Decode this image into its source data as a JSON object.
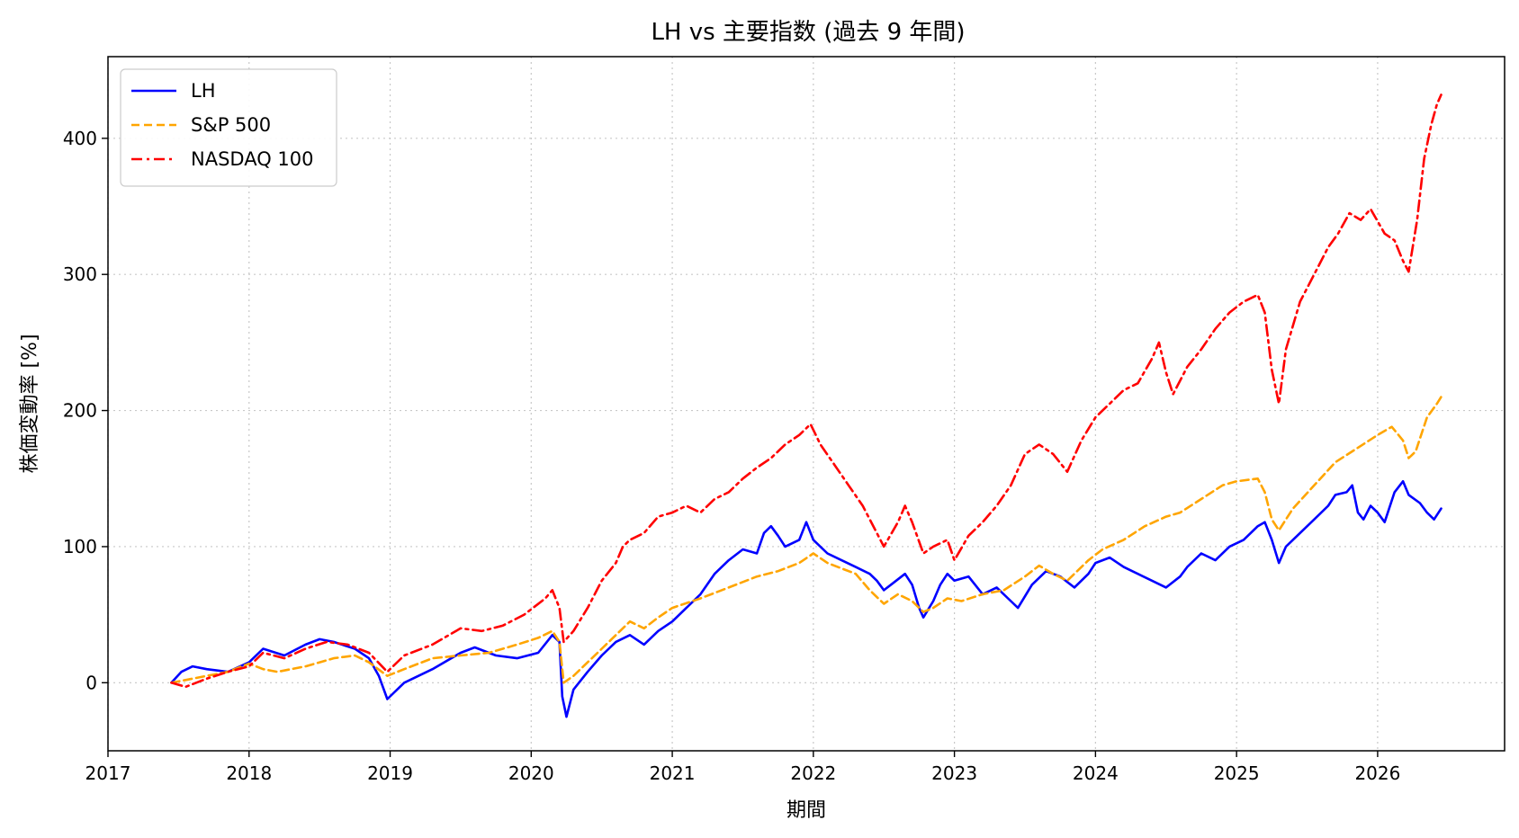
{
  "chart_data": {
    "type": "line",
    "title": "LH vs 主要指数 (過去 9 年間)",
    "xlabel": "期間",
    "ylabel": "株価変動率 [%]",
    "xlim": [
      2017.0,
      2026.9
    ],
    "ylim": [
      -50,
      460
    ],
    "x_ticks": [
      "2017",
      "2018",
      "2019",
      "2020",
      "2021",
      "2022",
      "2023",
      "2024",
      "2025",
      "2026"
    ],
    "y_ticks": [
      0,
      100,
      200,
      300,
      400
    ],
    "grid": true,
    "legend_position": "upper-left",
    "series": [
      {
        "name": "LH",
        "color": "#0000ff",
        "style": "solid",
        "points": [
          [
            2017.45,
            0
          ],
          [
            2017.52,
            8
          ],
          [
            2017.6,
            12
          ],
          [
            2017.7,
            10
          ],
          [
            2017.85,
            8
          ],
          [
            2018.0,
            15
          ],
          [
            2018.1,
            25
          ],
          [
            2018.25,
            20
          ],
          [
            2018.4,
            28
          ],
          [
            2018.5,
            32
          ],
          [
            2018.6,
            30
          ],
          [
            2018.75,
            25
          ],
          [
            2018.85,
            18
          ],
          [
            2018.92,
            5
          ],
          [
            2018.98,
            -12
          ],
          [
            2019.1,
            0
          ],
          [
            2019.3,
            10
          ],
          [
            2019.5,
            22
          ],
          [
            2019.6,
            26
          ],
          [
            2019.75,
            20
          ],
          [
            2019.9,
            18
          ],
          [
            2020.05,
            22
          ],
          [
            2020.15,
            35
          ],
          [
            2020.2,
            30
          ],
          [
            2020.22,
            -10
          ],
          [
            2020.25,
            -25
          ],
          [
            2020.3,
            -5
          ],
          [
            2020.4,
            8
          ],
          [
            2020.5,
            20
          ],
          [
            2020.6,
            30
          ],
          [
            2020.7,
            35
          ],
          [
            2020.8,
            28
          ],
          [
            2020.9,
            38
          ],
          [
            2021.0,
            45
          ],
          [
            2021.1,
            55
          ],
          [
            2021.2,
            65
          ],
          [
            2021.3,
            80
          ],
          [
            2021.4,
            90
          ],
          [
            2021.5,
            98
          ],
          [
            2021.6,
            95
          ],
          [
            2021.65,
            110
          ],
          [
            2021.7,
            115
          ],
          [
            2021.75,
            108
          ],
          [
            2021.8,
            100
          ],
          [
            2021.9,
            105
          ],
          [
            2021.95,
            118
          ],
          [
            2022.0,
            105
          ],
          [
            2022.1,
            95
          ],
          [
            2022.2,
            90
          ],
          [
            2022.3,
            85
          ],
          [
            2022.4,
            80
          ],
          [
            2022.45,
            75
          ],
          [
            2022.5,
            68
          ],
          [
            2022.55,
            72
          ],
          [
            2022.65,
            80
          ],
          [
            2022.7,
            72
          ],
          [
            2022.75,
            55
          ],
          [
            2022.78,
            48
          ],
          [
            2022.85,
            60
          ],
          [
            2022.9,
            72
          ],
          [
            2022.95,
            80
          ],
          [
            2023.0,
            75
          ],
          [
            2023.1,
            78
          ],
          [
            2023.2,
            65
          ],
          [
            2023.3,
            70
          ],
          [
            2023.4,
            60
          ],
          [
            2023.45,
            55
          ],
          [
            2023.55,
            72
          ],
          [
            2023.65,
            82
          ],
          [
            2023.75,
            78
          ],
          [
            2023.85,
            70
          ],
          [
            2023.95,
            80
          ],
          [
            2024.0,
            88
          ],
          [
            2024.1,
            92
          ],
          [
            2024.2,
            85
          ],
          [
            2024.3,
            80
          ],
          [
            2024.4,
            75
          ],
          [
            2024.5,
            70
          ],
          [
            2024.6,
            78
          ],
          [
            2024.65,
            85
          ],
          [
            2024.7,
            90
          ],
          [
            2024.75,
            95
          ],
          [
            2024.85,
            90
          ],
          [
            2024.95,
            100
          ],
          [
            2025.05,
            105
          ],
          [
            2025.15,
            115
          ],
          [
            2025.2,
            118
          ],
          [
            2025.25,
            105
          ],
          [
            2025.3,
            88
          ],
          [
            2025.35,
            100
          ],
          [
            2025.45,
            110
          ],
          [
            2025.55,
            120
          ],
          [
            2025.65,
            130
          ],
          [
            2025.7,
            138
          ],
          [
            2025.78,
            140
          ],
          [
            2025.82,
            145
          ],
          [
            2025.86,
            125
          ],
          [
            2025.9,
            120
          ],
          [
            2025.95,
            130
          ],
          [
            2026.0,
            125
          ],
          [
            2026.05,
            118
          ],
          [
            2026.12,
            140
          ],
          [
            2026.18,
            148
          ],
          [
            2026.22,
            138
          ],
          [
            2026.3,
            132
          ],
          [
            2026.35,
            125
          ],
          [
            2026.4,
            120
          ],
          [
            2026.45,
            128
          ]
        ]
      },
      {
        "name": "S&P 500",
        "color": "#ffa500",
        "style": "dashed",
        "points": [
          [
            2017.45,
            0
          ],
          [
            2017.55,
            2
          ],
          [
            2017.7,
            5
          ],
          [
            2017.85,
            8
          ],
          [
            2018.0,
            14
          ],
          [
            2018.1,
            10
          ],
          [
            2018.2,
            8
          ],
          [
            2018.4,
            12
          ],
          [
            2018.6,
            18
          ],
          [
            2018.75,
            20
          ],
          [
            2018.85,
            15
          ],
          [
            2018.98,
            5
          ],
          [
            2019.1,
            10
          ],
          [
            2019.3,
            18
          ],
          [
            2019.5,
            20
          ],
          [
            2019.7,
            22
          ],
          [
            2019.9,
            28
          ],
          [
            2020.05,
            33
          ],
          [
            2020.15,
            38
          ],
          [
            2020.2,
            30
          ],
          [
            2020.23,
            0
          ],
          [
            2020.3,
            5
          ],
          [
            2020.4,
            15
          ],
          [
            2020.5,
            25
          ],
          [
            2020.6,
            35
          ],
          [
            2020.7,
            45
          ],
          [
            2020.8,
            40
          ],
          [
            2020.9,
            48
          ],
          [
            2021.0,
            55
          ],
          [
            2021.2,
            62
          ],
          [
            2021.4,
            70
          ],
          [
            2021.6,
            78
          ],
          [
            2021.75,
            82
          ],
          [
            2021.9,
            88
          ],
          [
            2022.0,
            95
          ],
          [
            2022.1,
            88
          ],
          [
            2022.2,
            84
          ],
          [
            2022.3,
            80
          ],
          [
            2022.4,
            68
          ],
          [
            2022.5,
            58
          ],
          [
            2022.6,
            65
          ],
          [
            2022.7,
            60
          ],
          [
            2022.78,
            52
          ],
          [
            2022.85,
            55
          ],
          [
            2022.95,
            62
          ],
          [
            2023.05,
            60
          ],
          [
            2023.2,
            65
          ],
          [
            2023.35,
            68
          ],
          [
            2023.5,
            78
          ],
          [
            2023.6,
            86
          ],
          [
            2023.7,
            80
          ],
          [
            2023.8,
            75
          ],
          [
            2023.95,
            90
          ],
          [
            2024.05,
            98
          ],
          [
            2024.2,
            105
          ],
          [
            2024.35,
            115
          ],
          [
            2024.5,
            122
          ],
          [
            2024.6,
            125
          ],
          [
            2024.75,
            135
          ],
          [
            2024.9,
            145
          ],
          [
            2025.0,
            148
          ],
          [
            2025.15,
            150
          ],
          [
            2025.2,
            140
          ],
          [
            2025.25,
            120
          ],
          [
            2025.3,
            112
          ],
          [
            2025.4,
            128
          ],
          [
            2025.55,
            145
          ],
          [
            2025.7,
            162
          ],
          [
            2025.85,
            172
          ],
          [
            2026.0,
            182
          ],
          [
            2026.1,
            188
          ],
          [
            2026.18,
            178
          ],
          [
            2026.22,
            165
          ],
          [
            2026.27,
            170
          ],
          [
            2026.35,
            195
          ],
          [
            2026.42,
            205
          ],
          [
            2026.45,
            210
          ]
        ]
      },
      {
        "name": "NASDAQ 100",
        "color": "#ff0000",
        "style": "dashdot",
        "points": [
          [
            2017.45,
            0
          ],
          [
            2017.55,
            -3
          ],
          [
            2017.7,
            3
          ],
          [
            2017.85,
            8
          ],
          [
            2018.0,
            12
          ],
          [
            2018.1,
            22
          ],
          [
            2018.25,
            18
          ],
          [
            2018.4,
            25
          ],
          [
            2018.55,
            30
          ],
          [
            2018.7,
            28
          ],
          [
            2018.85,
            22
          ],
          [
            2018.98,
            8
          ],
          [
            2019.1,
            20
          ],
          [
            2019.3,
            28
          ],
          [
            2019.5,
            40
          ],
          [
            2019.65,
            38
          ],
          [
            2019.8,
            42
          ],
          [
            2019.95,
            50
          ],
          [
            2020.1,
            62
          ],
          [
            2020.15,
            68
          ],
          [
            2020.2,
            55
          ],
          [
            2020.23,
            30
          ],
          [
            2020.3,
            38
          ],
          [
            2020.4,
            55
          ],
          [
            2020.5,
            75
          ],
          [
            2020.6,
            88
          ],
          [
            2020.65,
            100
          ],
          [
            2020.7,
            105
          ],
          [
            2020.8,
            110
          ],
          [
            2020.9,
            122
          ],
          [
            2021.0,
            125
          ],
          [
            2021.1,
            130
          ],
          [
            2021.2,
            125
          ],
          [
            2021.3,
            135
          ],
          [
            2021.4,
            140
          ],
          [
            2021.5,
            150
          ],
          [
            2021.6,
            158
          ],
          [
            2021.7,
            165
          ],
          [
            2021.8,
            175
          ],
          [
            2021.9,
            182
          ],
          [
            2021.98,
            190
          ],
          [
            2022.05,
            175
          ],
          [
            2022.15,
            160
          ],
          [
            2022.25,
            145
          ],
          [
            2022.35,
            130
          ],
          [
            2022.45,
            110
          ],
          [
            2022.5,
            100
          ],
          [
            2022.6,
            118
          ],
          [
            2022.65,
            130
          ],
          [
            2022.7,
            118
          ],
          [
            2022.78,
            95
          ],
          [
            2022.85,
            100
          ],
          [
            2022.95,
            105
          ],
          [
            2023.0,
            90
          ],
          [
            2023.1,
            108
          ],
          [
            2023.2,
            118
          ],
          [
            2023.3,
            130
          ],
          [
            2023.4,
            145
          ],
          [
            2023.5,
            168
          ],
          [
            2023.6,
            175
          ],
          [
            2023.7,
            168
          ],
          [
            2023.8,
            155
          ],
          [
            2023.9,
            178
          ],
          [
            2024.0,
            195
          ],
          [
            2024.1,
            205
          ],
          [
            2024.2,
            215
          ],
          [
            2024.3,
            220
          ],
          [
            2024.4,
            238
          ],
          [
            2024.45,
            250
          ],
          [
            2024.5,
            228
          ],
          [
            2024.55,
            212
          ],
          [
            2024.65,
            232
          ],
          [
            2024.75,
            245
          ],
          [
            2024.85,
            260
          ],
          [
            2024.95,
            272
          ],
          [
            2025.05,
            280
          ],
          [
            2025.15,
            285
          ],
          [
            2025.2,
            272
          ],
          [
            2025.25,
            230
          ],
          [
            2025.3,
            205
          ],
          [
            2025.35,
            245
          ],
          [
            2025.45,
            280
          ],
          [
            2025.55,
            300
          ],
          [
            2025.65,
            320
          ],
          [
            2025.72,
            330
          ],
          [
            2025.8,
            345
          ],
          [
            2025.88,
            340
          ],
          [
            2025.95,
            348
          ],
          [
            2026.05,
            330
          ],
          [
            2026.12,
            325
          ],
          [
            2026.18,
            310
          ],
          [
            2026.22,
            302
          ],
          [
            2026.28,
            340
          ],
          [
            2026.33,
            385
          ],
          [
            2026.38,
            410
          ],
          [
            2026.42,
            425
          ],
          [
            2026.45,
            432
          ]
        ]
      }
    ]
  }
}
